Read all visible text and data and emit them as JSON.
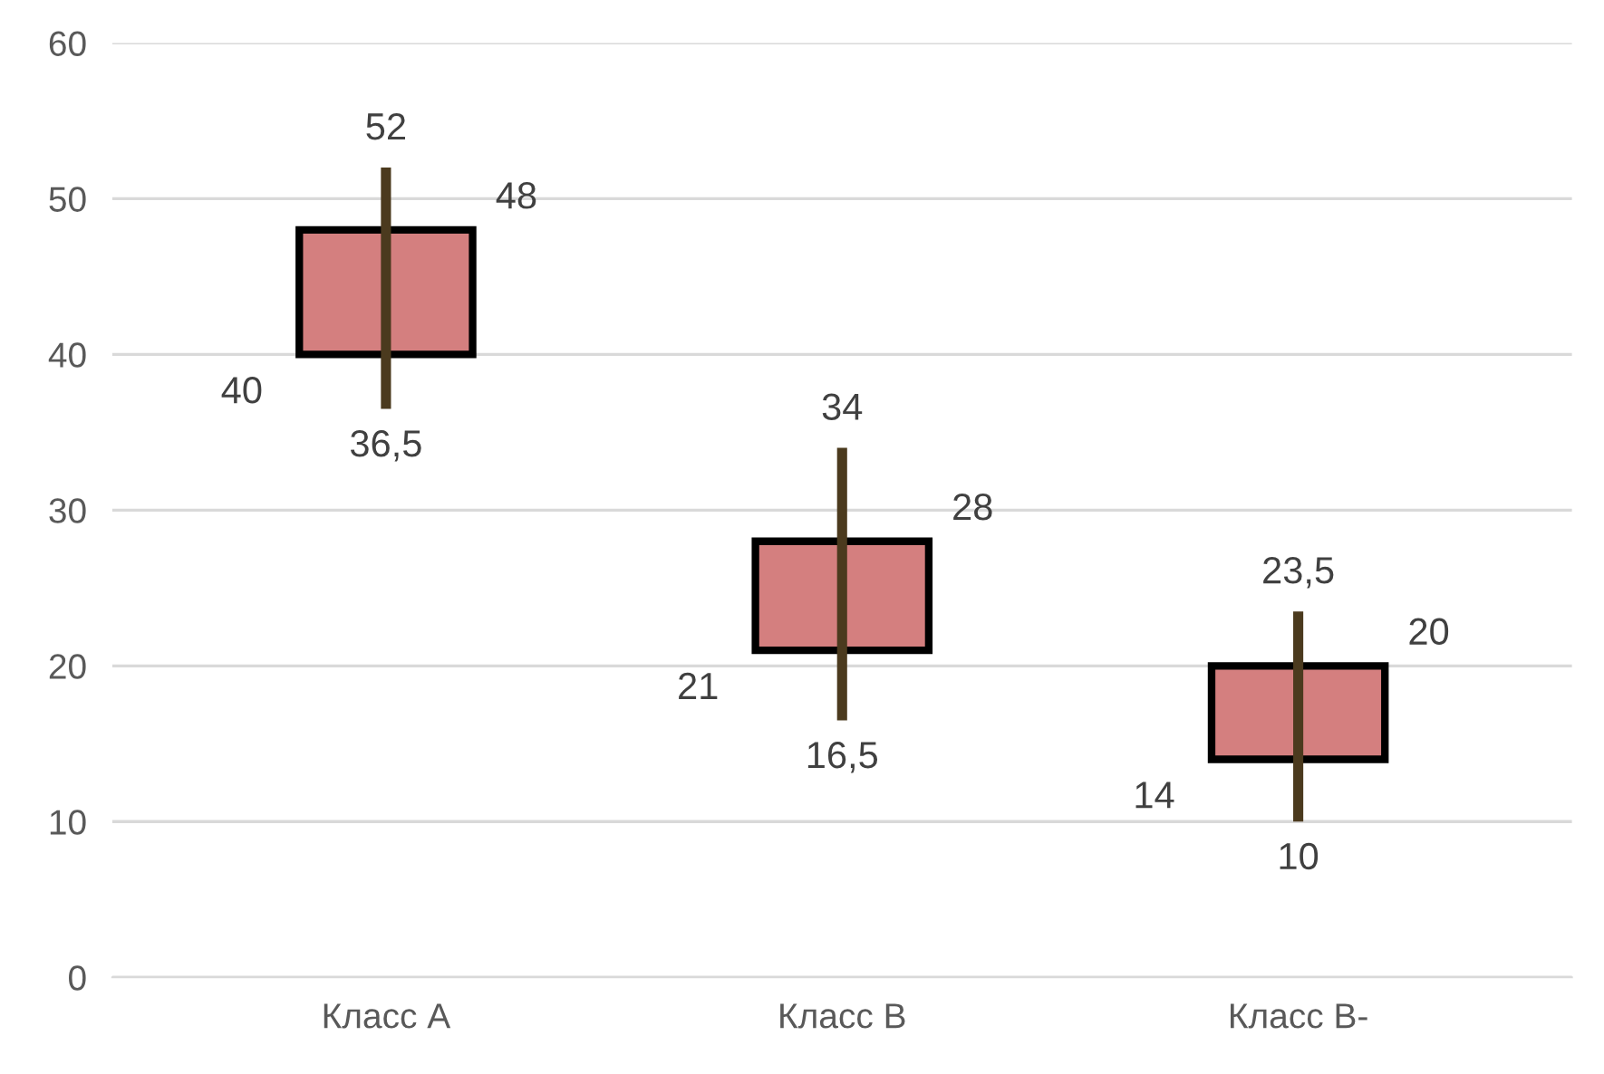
{
  "chart_data": {
    "type": "candlestick",
    "categories": [
      "Класс А",
      "Класс В",
      "Класс В-"
    ],
    "ohlc": [
      [
        40,
        52,
        36.5,
        48
      ],
      [
        21,
        34,
        16.5,
        28
      ],
      [
        14,
        23.5,
        10,
        20
      ]
    ],
    "value_labels": [
      [
        "40",
        "52",
        "36,5",
        "48"
      ],
      [
        "21",
        "34",
        "16,5",
        "28"
      ],
      [
        "14",
        "23,5",
        "10",
        "20"
      ]
    ],
    "color": "#d47f7f",
    "ylim": [
      0,
      60
    ],
    "yticks": [
      0,
      10,
      20,
      30,
      40,
      50,
      60
    ],
    "grid": "y"
  }
}
